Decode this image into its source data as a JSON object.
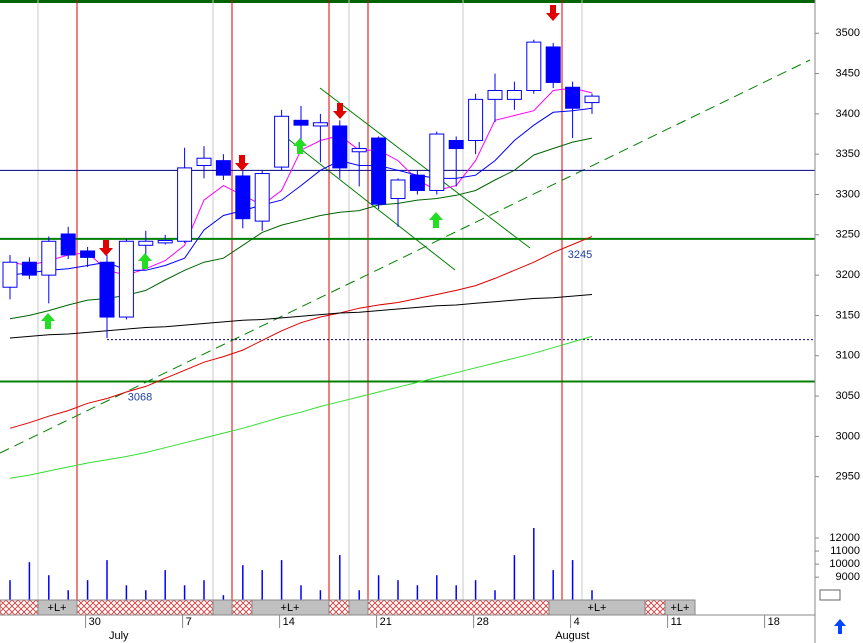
{
  "chart_data": {
    "type": "candlestick",
    "categories": [
      null,
      null,
      null,
      null,
      "30",
      null,
      null,
      null,
      null,
      "7",
      null,
      null,
      null,
      null,
      "14",
      null,
      null,
      null,
      null,
      "21",
      null,
      null,
      null,
      null,
      "28",
      null,
      null,
      null,
      null,
      "4",
      null,
      null,
      null,
      null,
      "11",
      null,
      null,
      null,
      null,
      "18",
      null,
      null,
      null,
      null
    ],
    "month_labels": [
      null,
      null,
      null,
      null,
      null,
      "July",
      null,
      null,
      null,
      null,
      null,
      null,
      null,
      null,
      null,
      null,
      null,
      null,
      null,
      null,
      null,
      null,
      null,
      null,
      null,
      null,
      null,
      null,
      "August",
      null,
      null,
      null,
      null,
      null,
      null,
      null,
      null,
      null,
      null,
      null,
      null,
      null,
      null,
      null
    ],
    "ohlc": {
      "up_color": "#ffffff",
      "down_color": "#0000ff",
      "edge_color": "#0000ff",
      "open": [
        3185,
        3216,
        3200,
        3251,
        3230,
        3216,
        3148,
        3237,
        3240,
        3242,
        3336,
        3342,
        3323,
        3267,
        3334,
        3392,
        3385,
        3385,
        3353,
        3370,
        3295,
        3324,
        3305,
        3367,
        3367,
        3418,
        3418,
        3429,
        3483,
        3433,
        3414,
        null,
        null,
        null,
        null,
        null,
        null,
        null,
        null,
        null,
        null,
        null,
        null,
        null
      ],
      "high": [
        3225,
        3222,
        3248,
        3260,
        3235,
        3225,
        3245,
        3255,
        3250,
        3358,
        3360,
        3350,
        3330,
        3330,
        3405,
        3410,
        3400,
        3392,
        3365,
        3372,
        3320,
        3330,
        3378,
        3372,
        3425,
        3450,
        3440,
        3492,
        3488,
        3440,
        3425,
        null,
        null,
        null,
        null,
        null,
        null,
        null,
        null,
        null,
        null,
        null,
        null,
        null
      ],
      "low": [
        3170,
        3195,
        3165,
        3220,
        3210,
        3122,
        3145,
        3225,
        3238,
        3240,
        3320,
        3318,
        3258,
        3255,
        3330,
        3365,
        3340,
        3320,
        3310,
        3282,
        3260,
        3300,
        3300,
        3310,
        3350,
        3390,
        3405,
        3425,
        3432,
        3370,
        3400,
        null,
        null,
        null,
        null,
        null,
        null,
        null,
        null,
        null,
        null,
        null,
        null,
        null
      ],
      "close": [
        3216,
        3200,
        3242,
        3225,
        3222,
        3148,
        3242,
        3242,
        3243,
        3333,
        3345,
        3324,
        3270,
        3326,
        3397,
        3386,
        3389,
        3333,
        3357,
        3288,
        3318,
        3305,
        3375,
        3357,
        3418,
        3429,
        3429,
        3489,
        3439,
        3407,
        3422,
        null,
        null,
        null,
        null,
        null,
        null,
        null,
        null,
        null,
        null,
        null,
        null,
        null
      ]
    },
    "series": [
      {
        "color": "#ff00ff",
        "values": [
          3216,
          3212,
          3218,
          3225,
          3228,
          3206,
          3200,
          3208,
          3218,
          3237,
          3293,
          3311,
          3299,
          3287,
          3305,
          3355,
          3367,
          3373,
          3355,
          3355,
          3342,
          3318,
          3305,
          3311,
          3342,
          3392,
          3398,
          3404,
          3429,
          3432,
          3426,
          null,
          null,
          null,
          null,
          null,
          null,
          null,
          null,
          null,
          null,
          null,
          null,
          null
        ]
      },
      {
        "color": "#0000ff",
        "values": [
          3200,
          3203,
          3206,
          3208,
          3212,
          3216,
          3206,
          3206,
          3212,
          3221,
          3256,
          3274,
          3280,
          3287,
          3293,
          3311,
          3330,
          3342,
          3336,
          3336,
          3330,
          3324,
          3320,
          3320,
          3324,
          3342,
          3367,
          3386,
          3402,
          3404,
          3407,
          null,
          null,
          null,
          null,
          null,
          null,
          null,
          null,
          null,
          null,
          null,
          null,
          null
        ]
      },
      {
        "color": "#006400",
        "values": [
          3146,
          3150,
          3156,
          3163,
          3169,
          3171,
          3175,
          3181,
          3194,
          3206,
          3216,
          3221,
          3237,
          3253,
          3262,
          3268,
          3274,
          3278,
          3280,
          3287,
          3289,
          3293,
          3295,
          3299,
          3305,
          3318,
          3330,
          3349,
          3357,
          3365,
          3370,
          null,
          null,
          null,
          null,
          null,
          null,
          null,
          null,
          null,
          null,
          null,
          null,
          null
        ]
      },
      {
        "color": "#e00000",
        "values": [
          3010,
          3017,
          3025,
          3032,
          3041,
          3047,
          3055,
          3062,
          3072,
          3082,
          3092,
          3099,
          3107,
          3119,
          3131,
          3141,
          3148,
          3153,
          3159,
          3163,
          3166,
          3171,
          3176,
          3181,
          3187,
          3196,
          3206,
          3216,
          3228,
          3238,
          3248,
          null,
          null,
          null,
          null,
          null,
          null,
          null,
          null,
          null,
          null,
          null,
          null,
          null
        ]
      },
      {
        "color": "#000000",
        "values": [
          3122,
          3124,
          3126,
          3127,
          3129,
          3131,
          3133,
          3135,
          3136,
          3138,
          3140,
          3142,
          3144,
          3145,
          3147,
          3149,
          3151,
          3153,
          3154,
          3156,
          3158,
          3160,
          3162,
          3163,
          3165,
          3167,
          3169,
          3171,
          3172,
          3174,
          3176,
          null,
          null,
          null,
          null,
          null,
          null,
          null,
          null,
          null,
          null,
          null,
          null,
          null
        ]
      },
      {
        "color": "#33dd33",
        "values": [
          2948,
          2952,
          2957,
          2962,
          2967,
          2971,
          2975,
          2980,
          2986,
          2992,
          2998,
          3004,
          3010,
          3017,
          3024,
          3030,
          3037,
          3043,
          3049,
          3055,
          3061,
          3067,
          3073,
          3079,
          3085,
          3091,
          3097,
          3103,
          3110,
          3117,
          3124,
          null,
          null,
          null,
          null,
          null,
          null,
          null,
          null,
          null,
          null,
          null,
          null,
          null
        ]
      }
    ],
    "volume": {
      "color": "#0000ff",
      "axis": "y2",
      "values": [
        8770,
        10150,
        9150,
        8000,
        8770,
        10310,
        8380,
        8000,
        9540,
        8380,
        8770,
        7620,
        9920,
        9540,
        10310,
        8380,
        8000,
        10690,
        8000,
        9150,
        8770,
        8380,
        9150,
        8380,
        8770,
        8000,
        10690,
        12770,
        9540,
        10310,
        8000,
        null,
        null,
        null,
        null,
        null,
        null,
        null,
        null,
        null,
        null,
        null,
        null,
        null
      ]
    },
    "ylim": [
      2900,
      3540
    ],
    "yticks": [
      2950,
      3000,
      3050,
      3100,
      3150,
      3200,
      3250,
      3300,
      3350,
      3400,
      3450,
      3500
    ],
    "y2lim": [
      7250,
      12800
    ],
    "y2ticks": [
      9000,
      10000,
      11000,
      12000
    ],
    "support_levels": [
      3245,
      3068
    ],
    "support_color": "#008000",
    "reference_levels": [
      3330,
      3120
    ],
    "band_labels": [
      "+L+",
      "+L+",
      "+L+",
      "+L+"
    ]
  }
}
